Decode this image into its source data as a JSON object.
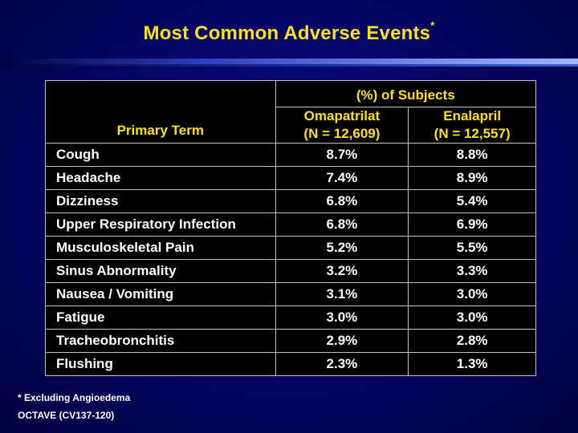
{
  "title": "Most Common Adverse Events",
  "title_marker": "*",
  "table": {
    "column_group_header": "(%) of Subjects",
    "primary_term_header": "Primary Term",
    "arms": [
      {
        "name": "Omapatrilat",
        "n": "(N = 12,609)"
      },
      {
        "name": "Enalapril",
        "n": "(N = 12,557)"
      }
    ],
    "rows": [
      {
        "term": "Cough",
        "omapatrilat": "8.7%",
        "enalapril": "8.8%"
      },
      {
        "term": "Headache",
        "omapatrilat": "7.4%",
        "enalapril": "8.9%"
      },
      {
        "term": "Dizziness",
        "omapatrilat": "6.8%",
        "enalapril": "5.4%"
      },
      {
        "term": "Upper Respiratory Infection",
        "omapatrilat": "6.8%",
        "enalapril": "6.9%"
      },
      {
        "term": "Musculoskeletal Pain",
        "omapatrilat": "5.2%",
        "enalapril": "5.5%"
      },
      {
        "term": "Sinus Abnormality",
        "omapatrilat": "3.2%",
        "enalapril": "3.3%"
      },
      {
        "term": "Nausea / Vomiting",
        "omapatrilat": "3.1%",
        "enalapril": "3.0%"
      },
      {
        "term": "Fatigue",
        "omapatrilat": "3.0%",
        "enalapril": "3.0%"
      },
      {
        "term": "Tracheobronchitis",
        "omapatrilat": "2.9%",
        "enalapril": "2.8%"
      },
      {
        "term": "Flushing",
        "omapatrilat": "2.3%",
        "enalapril": "1.3%"
      }
    ]
  },
  "footnotes": {
    "asterisk_note": "* Excluding Angioedema",
    "study": "OCTAVE (CV137-120)"
  },
  "colors": {
    "title": "#ffe01a",
    "header_text": "#ffe01a",
    "body_text": "#ffffff",
    "background": "#050563",
    "table_background": "#000000"
  }
}
